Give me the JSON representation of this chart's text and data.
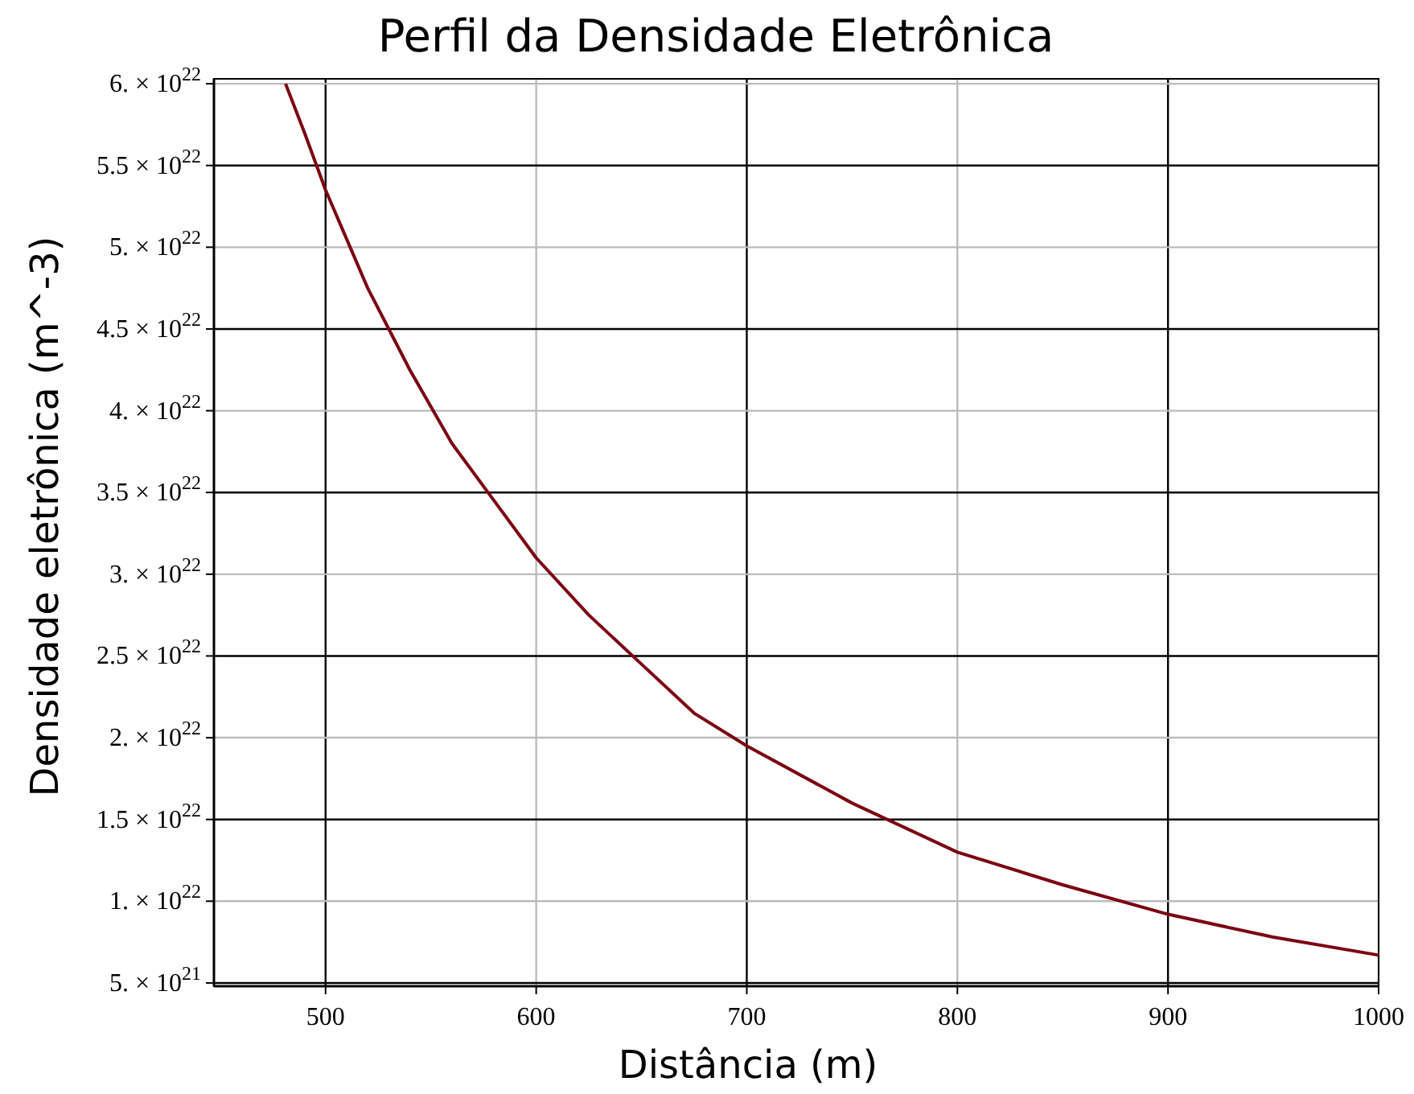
{
  "chart_data": {
    "type": "line",
    "title": "Perfil da Densidade Eletrônica",
    "xlabel": "Distância (m)",
    "ylabel": "Densidade eletrônica (m^-3)",
    "x": [
      481,
      490,
      500,
      520,
      540,
      560,
      580,
      600,
      625,
      650,
      675,
      700,
      750,
      800,
      850,
      900,
      950,
      1000
    ],
    "series": [
      {
        "color": "#7b0011",
        "values": [
          6e+22,
          5.7e+22,
          5.35e+22,
          4.75e+22,
          4.25e+22,
          3.8e+22,
          3.45e+22,
          3.1e+22,
          2.75e+22,
          2.45e+22,
          2.15e+22,
          1.95e+22,
          1.6e+22,
          1.3e+22,
          1.1e+22,
          9.2e+21,
          7.8e+21,
          6.7e+21
        ]
      }
    ],
    "xlim": [
      447,
      1000
    ],
    "xticks": [
      500,
      600,
      700,
      800,
      900,
      1000
    ],
    "ylim": [
      4.8e+21,
      6.03e+22
    ],
    "yticks": [
      {
        "value": 5e+21,
        "label": "5. × 10$^{21}$"
      },
      {
        "value": 1e+22,
        "label": "1. × 10$^{22}$"
      },
      {
        "value": 1.5e+22,
        "label": "1.5 × 10$^{22}$"
      },
      {
        "value": 2e+22,
        "label": "2. × 10$^{22}$"
      },
      {
        "value": 2.5e+22,
        "label": "2.5 × 10$^{22}$"
      },
      {
        "value": 3e+22,
        "label": "3. × 10$^{22}$"
      },
      {
        "value": 3.5e+22,
        "label": "3.5 × 10$^{22}$"
      },
      {
        "value": 4e+22,
        "label": "4. × 10$^{22}$"
      },
      {
        "value": 4.5e+22,
        "label": "4.5 × 10$^{22}$"
      },
      {
        "value": 5e+22,
        "label": "5. × 10$^{22}$"
      },
      {
        "value": 5.5e+22,
        "label": "5.5 × 10$^{22}$"
      },
      {
        "value": 6e+22,
        "label": "6. × 10$^{22}$"
      }
    ],
    "grid": true,
    "line_style": "solid",
    "marker": "none"
  }
}
